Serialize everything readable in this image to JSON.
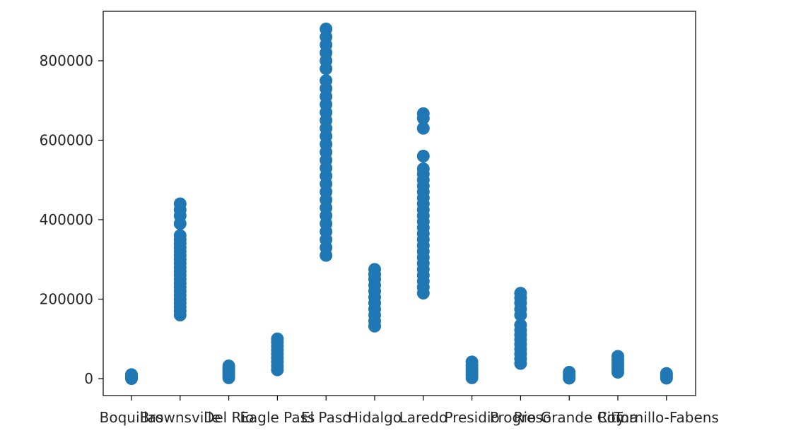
{
  "chart_data": {
    "type": "scatter",
    "title": "",
    "xlabel": "",
    "ylabel": "",
    "marker_color": "#1f77b4",
    "ylim": [
      -40000,
      925000
    ],
    "yticks": [
      0,
      200000,
      400000,
      600000,
      800000
    ],
    "ytick_labels": [
      "0",
      "200000",
      "400000",
      "600000",
      "800000"
    ],
    "categories": [
      "Boquillas",
      "Brownsville",
      "Del Rio",
      "Eagle Pass",
      "El Paso",
      "Hidalgo",
      "Laredo",
      "Presidio",
      "Progreso",
      "Rio Grande City",
      "Roma",
      "Tornillo-Fabens"
    ],
    "tick_labels_visible": [
      "Boquillas",
      "Brownsville",
      "Del Rio",
      "Eagle Pass",
      "El Paso",
      "Hidalgo",
      "Laredo",
      "Presidio",
      "Progreso",
      "Rio Grande City",
      "Roma",
      "Tornillo-Fabens"
    ],
    "series": [
      {
        "values": [
          {
            "x": "Boquillas",
            "y": [
              0,
              2000,
              4000,
              6000,
              8000,
              10000
            ]
          },
          {
            "x": "Brownsville",
            "y": [
              160000,
              170000,
              180000,
              190000,
              200000,
              210000,
              220000,
              230000,
              240000,
              250000,
              260000,
              270000,
              280000,
              290000,
              300000,
              310000,
              320000,
              330000,
              340000,
              350000,
              360000,
              390000,
              410000,
              425000,
              440000
            ]
          },
          {
            "x": "Del Rio",
            "y": [
              2000,
              8000,
              14000,
              20000,
              26000,
              32000
            ]
          },
          {
            "x": "Eagle Pass",
            "y": [
              22000,
              32000,
              42000,
              52000,
              62000,
              72000,
              82000,
              92000,
              100000
            ]
          },
          {
            "x": "El Paso",
            "y": [
              310000,
              330000,
              350000,
              370000,
              390000,
              410000,
              430000,
              450000,
              470000,
              490000,
              510000,
              530000,
              550000,
              570000,
              590000,
              610000,
              630000,
              650000,
              670000,
              690000,
              710000,
              730000,
              750000,
              780000,
              800000,
              820000,
              840000,
              860000,
              880000
            ]
          },
          {
            "x": "Hidalgo",
            "y": [
              132000,
              145000,
              160000,
              175000,
              190000,
              205000,
              220000,
              235000,
              250000,
              262000,
              275000
            ]
          },
          {
            "x": "Laredo",
            "y": [
              215000,
              230000,
              245000,
              260000,
              275000,
              290000,
              305000,
              320000,
              335000,
              350000,
              365000,
              380000,
              395000,
              410000,
              425000,
              440000,
              455000,
              470000,
              485000,
              500000,
              515000,
              528000,
              560000,
              630000,
              655000,
              667000
            ]
          },
          {
            "x": "Presidio",
            "y": [
              2000,
              10000,
              18000,
              26000,
              34000,
              42000
            ]
          },
          {
            "x": "Progreso",
            "y": [
              38000,
              50000,
              62000,
              74000,
              86000,
              98000,
              110000,
              122000,
              135000,
              160000,
              175000,
              190000,
              203000,
              215000
            ]
          },
          {
            "x": "Rio Grande City",
            "y": [
              1000,
              6000,
              11000,
              16000
            ]
          },
          {
            "x": "Roma",
            "y": [
              16000,
              24000,
              32000,
              40000,
              48000,
              56000
            ]
          },
          {
            "x": "Tornillo-Fabens",
            "y": [
              1000,
              5000,
              9000,
              13000
            ]
          }
        ]
      }
    ],
    "grid": false,
    "legend": "none"
  }
}
